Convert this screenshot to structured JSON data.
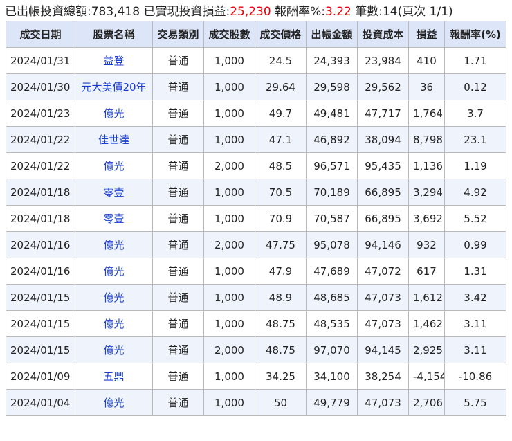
{
  "summary": {
    "outflow_label": "已出帳投資總額:",
    "outflow_value": "783,418",
    "realized_label": " 已實現投資損益:",
    "realized_value": "25,230",
    "return_label": " 報酬率%:",
    "return_value": "3.22",
    "count_label": " 筆數:",
    "count_value": "14",
    "page_info": "(頁次 1/1)"
  },
  "colors": {
    "header_bg": "#dde6f9",
    "stripe_bg": "#eef3fc",
    "stock_link": "#1a3fd0",
    "highlight_red": "#e8000b"
  },
  "table": {
    "columns": [
      "成交日期",
      "股票名稱",
      "交易類別",
      "成交股數",
      "成交價格",
      "出帳金額",
      "投資成本",
      "損益",
      "報酬率(%)"
    ],
    "rows": [
      {
        "date": "2024/01/31",
        "name": "益登",
        "type": "普通",
        "shares": "1,000",
        "price": "24.5",
        "amount": "24,393",
        "cost": "23,984",
        "pnl": "410",
        "ret": "1.71"
      },
      {
        "date": "2024/01/30",
        "name": "元大美債20年",
        "type": "普通",
        "shares": "1,000",
        "price": "29.64",
        "amount": "29,598",
        "cost": "29,562",
        "pnl": "36",
        "ret": "0.12"
      },
      {
        "date": "2024/01/23",
        "name": "億光",
        "type": "普通",
        "shares": "1,000",
        "price": "49.7",
        "amount": "49,481",
        "cost": "47,717",
        "pnl": "1,764",
        "ret": "3.7"
      },
      {
        "date": "2024/01/22",
        "name": "佳世達",
        "type": "普通",
        "shares": "1,000",
        "price": "47.1",
        "amount": "46,892",
        "cost": "38,094",
        "pnl": "8,798",
        "ret": "23.1"
      },
      {
        "date": "2024/01/22",
        "name": "億光",
        "type": "普通",
        "shares": "2,000",
        "price": "48.5",
        "amount": "96,571",
        "cost": "95,435",
        "pnl": "1,136",
        "ret": "1.19"
      },
      {
        "date": "2024/01/18",
        "name": "零壹",
        "type": "普通",
        "shares": "1,000",
        "price": "70.5",
        "amount": "70,189",
        "cost": "66,895",
        "pnl": "3,294",
        "ret": "4.92"
      },
      {
        "date": "2024/01/18",
        "name": "零壹",
        "type": "普通",
        "shares": "1,000",
        "price": "70.9",
        "amount": "70,587",
        "cost": "66,895",
        "pnl": "3,692",
        "ret": "5.52"
      },
      {
        "date": "2024/01/16",
        "name": "億光",
        "type": "普通",
        "shares": "2,000",
        "price": "47.75",
        "amount": "95,078",
        "cost": "94,146",
        "pnl": "932",
        "ret": "0.99"
      },
      {
        "date": "2024/01/16",
        "name": "億光",
        "type": "普通",
        "shares": "1,000",
        "price": "47.9",
        "amount": "47,689",
        "cost": "47,072",
        "pnl": "617",
        "ret": "1.31"
      },
      {
        "date": "2024/01/15",
        "name": "億光",
        "type": "普通",
        "shares": "1,000",
        "price": "48.9",
        "amount": "48,685",
        "cost": "47,073",
        "pnl": "1,612",
        "ret": "3.42"
      },
      {
        "date": "2024/01/15",
        "name": "億光",
        "type": "普通",
        "shares": "1,000",
        "price": "48.75",
        "amount": "48,535",
        "cost": "47,073",
        "pnl": "1,462",
        "ret": "3.11"
      },
      {
        "date": "2024/01/15",
        "name": "億光",
        "type": "普通",
        "shares": "2,000",
        "price": "48.75",
        "amount": "97,070",
        "cost": "94,145",
        "pnl": "2,925",
        "ret": "3.11"
      },
      {
        "date": "2024/01/09",
        "name": "五鼎",
        "type": "普通",
        "shares": "1,000",
        "price": "34.25",
        "amount": "34,100",
        "cost": "38,254",
        "pnl": "-4,154",
        "ret": "-10.86"
      },
      {
        "date": "2024/01/04",
        "name": "億光",
        "type": "普通",
        "shares": "1,000",
        "price": "50",
        "amount": "49,779",
        "cost": "47,073",
        "pnl": "2,706",
        "ret": "5.75"
      }
    ]
  }
}
